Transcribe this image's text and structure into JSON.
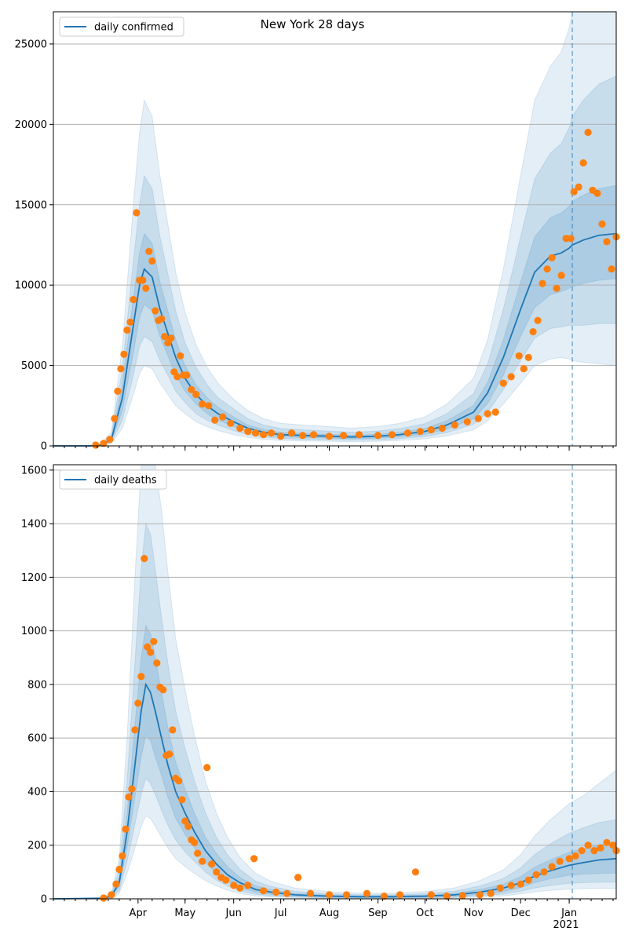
{
  "title": "New York 28 days",
  "colors": {
    "line": "#1f77b4",
    "points": "#ff7f0e",
    "band": "#1f77b4",
    "grid": "#b0b0b0",
    "forecast_line": "#1f77b4"
  },
  "x_axis": {
    "start": "2020-02-07",
    "end": "2021-01-31",
    "month_ticks": [
      {
        "date": "2020-04-01",
        "label": "Apr"
      },
      {
        "date": "2020-05-01",
        "label": "May"
      },
      {
        "date": "2020-06-01",
        "label": "Jun"
      },
      {
        "date": "2020-07-01",
        "label": "Jul"
      },
      {
        "date": "2020-08-01",
        "label": "Aug"
      },
      {
        "date": "2020-09-01",
        "label": "Sep"
      },
      {
        "date": "2020-10-01",
        "label": "Oct"
      },
      {
        "date": "2020-11-01",
        "label": "Nov"
      },
      {
        "date": "2020-12-01",
        "label": "Dec"
      },
      {
        "date": "2021-01-01",
        "label": "Jan"
      }
    ],
    "year_label": "2021",
    "forecast_start": "2021-01-03"
  },
  "chart_data": [
    {
      "type": "line",
      "legend": "daily confirmed",
      "legend_position": "top-left",
      "grid": "horizontal",
      "ylim": [
        0,
        27000
      ],
      "yticks": [
        0,
        5000,
        10000,
        15000,
        20000,
        25000
      ],
      "series_key": {
        "x": [
          "2020-02-07",
          "2020-03-01",
          "2020-03-08",
          "2020-03-15",
          "2020-03-22",
          "2020-03-29",
          "2020-04-02",
          "2020-04-05",
          "2020-04-10",
          "2020-04-15",
          "2020-04-20",
          "2020-04-25",
          "2020-05-01",
          "2020-05-08",
          "2020-05-15",
          "2020-05-22",
          "2020-06-01",
          "2020-06-10",
          "2020-06-20",
          "2020-07-01",
          "2020-07-15",
          "2020-08-01",
          "2020-08-15",
          "2020-09-01",
          "2020-09-15",
          "2020-10-01",
          "2020-10-15",
          "2020-11-01",
          "2020-11-10",
          "2020-11-20",
          "2020-12-01",
          "2020-12-10",
          "2020-12-20",
          "2020-12-27",
          "2021-01-01",
          "2021-01-03",
          "2021-01-10",
          "2021-01-20",
          "2021-01-31"
        ],
        "mean": [
          0,
          0,
          50,
          400,
          3000,
          7500,
          10000,
          11000,
          10500,
          8500,
          7000,
          5500,
          4200,
          3200,
          2500,
          2000,
          1500,
          1100,
          850,
          700,
          650,
          600,
          550,
          600,
          700,
          900,
          1300,
          2100,
          3300,
          5500,
          8500,
          10800,
          11800,
          12000,
          12300,
          12500,
          12800,
          13100,
          13200
        ],
        "band50_lo": [
          0,
          0,
          30,
          300,
          2200,
          5800,
          8000,
          8800,
          8400,
          6800,
          5600,
          4400,
          3400,
          2600,
          2000,
          1600,
          1200,
          900,
          680,
          560,
          520,
          480,
          440,
          480,
          560,
          720,
          1040,
          1680,
          2640,
          4400,
          6800,
          8600,
          9400,
          9600,
          9800,
          9900,
          10100,
          10300,
          10400
        ],
        "band50_hi": [
          0,
          0,
          70,
          500,
          3800,
          9200,
          12000,
          13200,
          12600,
          10200,
          8400,
          6600,
          5000,
          3800,
          3000,
          2400,
          1800,
          1300,
          1020,
          840,
          780,
          720,
          660,
          720,
          840,
          1080,
          1560,
          2520,
          3960,
          6600,
          10200,
          13000,
          14200,
          14500,
          14900,
          15200,
          15600,
          16000,
          16200
        ],
        "band80_lo": [
          0,
          0,
          20,
          220,
          1600,
          4400,
          6200,
          6800,
          6500,
          5300,
          4400,
          3400,
          2700,
          2000,
          1600,
          1300,
          950,
          700,
          540,
          450,
          410,
          380,
          350,
          380,
          450,
          580,
          830,
          1350,
          2100,
          3500,
          5300,
          6700,
          7300,
          7400,
          7500,
          7500,
          7500,
          7600,
          7600
        ],
        "band80_hi": [
          0,
          0,
          90,
          650,
          4800,
          11500,
          15000,
          16800,
          16000,
          13000,
          10700,
          8400,
          6400,
          4900,
          3800,
          3000,
          2300,
          1700,
          1300,
          1080,
          1000,
          920,
          850,
          920,
          1080,
          1380,
          2000,
          3250,
          5100,
          8500,
          13000,
          16600,
          18200,
          18800,
          19800,
          20500,
          21500,
          22500,
          23000
        ],
        "band95_lo": [
          0,
          0,
          10,
          150,
          1100,
          3200,
          4500,
          5000,
          4800,
          3900,
          3200,
          2500,
          2000,
          1500,
          1200,
          950,
          700,
          520,
          400,
          340,
          310,
          290,
          260,
          290,
          340,
          440,
          620,
          1000,
          1560,
          2600,
          3900,
          5000,
          5400,
          5500,
          5400,
          5300,
          5200,
          5100,
          5000
        ],
        "band95_hi": [
          0,
          0,
          120,
          850,
          6200,
          15000,
          19500,
          21500,
          20500,
          16800,
          13800,
          10800,
          8300,
          6300,
          4900,
          3900,
          2900,
          2200,
          1700,
          1400,
          1300,
          1200,
          1100,
          1200,
          1400,
          1800,
          2600,
          4200,
          6600,
          11000,
          16800,
          21500,
          23600,
          24500,
          26000,
          27000,
          27000,
          27000,
          27000
        ]
      },
      "points_key": {
        "x": [
          "2020-03-05",
          "2020-03-10",
          "2020-03-14",
          "2020-03-17",
          "2020-03-19",
          "2020-03-21",
          "2020-03-23",
          "2020-03-25",
          "2020-03-27",
          "2020-03-29",
          "2020-03-31",
          "2020-04-02",
          "2020-04-04",
          "2020-04-06",
          "2020-04-08",
          "2020-04-10",
          "2020-04-12",
          "2020-04-14",
          "2020-04-16",
          "2020-04-18",
          "2020-04-20",
          "2020-04-22",
          "2020-04-24",
          "2020-04-26",
          "2020-04-28",
          "2020-04-30",
          "2020-05-02",
          "2020-05-05",
          "2020-05-08",
          "2020-05-12",
          "2020-05-16",
          "2020-05-20",
          "2020-05-25",
          "2020-05-30",
          "2020-06-05",
          "2020-06-10",
          "2020-06-15",
          "2020-06-20",
          "2020-06-25",
          "2020-07-01",
          "2020-07-08",
          "2020-07-15",
          "2020-07-22",
          "2020-08-01",
          "2020-08-10",
          "2020-08-20",
          "2020-09-01",
          "2020-09-10",
          "2020-09-20",
          "2020-09-28",
          "2020-10-05",
          "2020-10-12",
          "2020-10-20",
          "2020-10-28",
          "2020-11-04",
          "2020-11-10",
          "2020-11-15",
          "2020-11-20",
          "2020-11-25",
          "2020-11-30",
          "2020-12-03",
          "2020-12-06",
          "2020-12-09",
          "2020-12-12",
          "2020-12-15",
          "2020-12-18",
          "2020-12-21",
          "2020-12-24",
          "2020-12-27",
          "2020-12-30",
          "2021-01-02",
          "2021-01-04",
          "2021-01-07",
          "2021-01-10",
          "2021-01-13",
          "2021-01-16",
          "2021-01-19",
          "2021-01-22",
          "2021-01-25",
          "2021-01-28",
          "2021-01-31"
        ],
        "y": [
          50,
          150,
          400,
          1700,
          3400,
          4800,
          5700,
          7200,
          7700,
          9100,
          14500,
          10300,
          10300,
          9800,
          12100,
          11500,
          8400,
          7800,
          7900,
          6800,
          6400,
          6700,
          4600,
          4300,
          5600,
          4400,
          4400,
          3500,
          3200,
          2600,
          2500,
          1600,
          1800,
          1400,
          1100,
          900,
          800,
          700,
          800,
          600,
          800,
          650,
          700,
          600,
          650,
          700,
          650,
          700,
          800,
          900,
          1000,
          1100,
          1300,
          1500,
          1700,
          2000,
          2100,
          3900,
          4300,
          5600,
          4800,
          5500,
          7100,
          7800,
          10100,
          11000,
          11700,
          9800,
          10600,
          12900,
          12900,
          15800,
          16100,
          17600,
          19500,
          15900,
          15700,
          13800,
          12700,
          11000,
          13000
        ]
      }
    },
    {
      "type": "line",
      "legend": "daily deaths",
      "legend_position": "top-left",
      "grid": "horizontal",
      "ylim": [
        0,
        1620
      ],
      "yticks": [
        0,
        200,
        400,
        600,
        800,
        1000,
        1200,
        1400,
        1600
      ],
      "series_key": {
        "x": [
          "2020-02-07",
          "2020-03-10",
          "2020-03-15",
          "2020-03-20",
          "2020-03-25",
          "2020-03-30",
          "2020-04-03",
          "2020-04-06",
          "2020-04-09",
          "2020-04-12",
          "2020-04-16",
          "2020-04-20",
          "2020-04-25",
          "2020-05-01",
          "2020-05-07",
          "2020-05-14",
          "2020-05-21",
          "2020-05-28",
          "2020-06-05",
          "2020-06-15",
          "2020-06-25",
          "2020-07-10",
          "2020-08-01",
          "2020-08-20",
          "2020-09-10",
          "2020-10-01",
          "2020-10-20",
          "2020-11-05",
          "2020-11-20",
          "2020-12-01",
          "2020-12-10",
          "2020-12-20",
          "2021-01-01",
          "2021-01-10",
          "2021-01-20",
          "2021-01-31"
        ],
        "mean": [
          0,
          2,
          10,
          60,
          250,
          500,
          700,
          800,
          770,
          700,
          600,
          500,
          400,
          320,
          250,
          180,
          130,
          90,
          60,
          35,
          25,
          15,
          10,
          8,
          8,
          10,
          15,
          25,
          40,
          60,
          85,
          105,
          125,
          135,
          145,
          150
        ],
        "band50_lo": [
          0,
          1,
          8,
          45,
          190,
          380,
          530,
          610,
          590,
          530,
          460,
          380,
          300,
          240,
          190,
          135,
          95,
          65,
          42,
          25,
          16,
          10,
          6,
          5,
          5,
          6,
          9,
          16,
          27,
          42,
          60,
          75,
          88,
          92,
          95,
          96
        ],
        "band50_hi": [
          0,
          3,
          13,
          80,
          320,
          650,
          900,
          1020,
          990,
          900,
          770,
          640,
          510,
          410,
          320,
          230,
          170,
          120,
          80,
          48,
          34,
          20,
          14,
          11,
          11,
          14,
          21,
          35,
          55,
          83,
          118,
          146,
          174,
          188,
          202,
          210
        ],
        "band80_lo": [
          0,
          0,
          5,
          30,
          140,
          280,
          390,
          450,
          430,
          390,
          330,
          275,
          220,
          175,
          140,
          100,
          70,
          48,
          30,
          17,
          11,
          7,
          4,
          3,
          3,
          4,
          6,
          11,
          18,
          28,
          40,
          50,
          58,
          60,
          62,
          62
        ],
        "band80_hi": [
          0,
          4,
          18,
          110,
          440,
          880,
          1230,
          1400,
          1360,
          1230,
          1050,
          880,
          700,
          560,
          440,
          320,
          230,
          165,
          110,
          66,
          46,
          28,
          19,
          15,
          15,
          19,
          29,
          48,
          76,
          115,
          165,
          205,
          245,
          265,
          285,
          295
        ],
        "band95_lo": [
          0,
          0,
          3,
          20,
          95,
          190,
          270,
          310,
          300,
          270,
          230,
          190,
          150,
          120,
          95,
          68,
          48,
          32,
          20,
          11,
          7,
          4,
          2,
          2,
          2,
          2,
          4,
          7,
          11,
          18,
          26,
          32,
          36,
          38,
          39,
          39
        ],
        "band95_hi": [
          0,
          6,
          25,
          150,
          600,
          1200,
          1620,
          1620,
          1620,
          1620,
          1450,
          1220,
          970,
          780,
          610,
          440,
          320,
          230,
          155,
          95,
          65,
          40,
          27,
          21,
          21,
          27,
          41,
          68,
          108,
          165,
          235,
          295,
          355,
          385,
          430,
          480
        ]
      },
      "points_key": {
        "x": [
          "2020-03-10",
          "2020-03-15",
          "2020-03-18",
          "2020-03-20",
          "2020-03-22",
          "2020-03-24",
          "2020-03-26",
          "2020-03-28",
          "2020-03-30",
          "2020-04-01",
          "2020-04-03",
          "2020-04-05",
          "2020-04-07",
          "2020-04-09",
          "2020-04-11",
          "2020-04-13",
          "2020-04-15",
          "2020-04-17",
          "2020-04-19",
          "2020-04-21",
          "2020-04-23",
          "2020-04-25",
          "2020-04-27",
          "2020-04-29",
          "2020-05-01",
          "2020-05-03",
          "2020-05-05",
          "2020-05-07",
          "2020-05-09",
          "2020-05-12",
          "2020-05-15",
          "2020-05-18",
          "2020-05-21",
          "2020-05-24",
          "2020-05-27",
          "2020-06-01",
          "2020-06-05",
          "2020-06-10",
          "2020-06-14",
          "2020-06-20",
          "2020-06-28",
          "2020-07-05",
          "2020-07-12",
          "2020-07-20",
          "2020-08-01",
          "2020-08-12",
          "2020-08-25",
          "2020-09-05",
          "2020-09-15",
          "2020-09-25",
          "2020-10-05",
          "2020-10-15",
          "2020-10-25",
          "2020-11-05",
          "2020-11-12",
          "2020-11-18",
          "2020-11-25",
          "2020-12-01",
          "2020-12-06",
          "2020-12-11",
          "2020-12-16",
          "2020-12-21",
          "2020-12-26",
          "2021-01-01",
          "2021-01-05",
          "2021-01-09",
          "2021-01-13",
          "2021-01-17",
          "2021-01-21",
          "2021-01-25",
          "2021-01-29",
          "2021-01-31"
        ],
        "y": [
          3,
          15,
          55,
          110,
          160,
          260,
          380,
          410,
          630,
          730,
          830,
          1270,
          940,
          920,
          960,
          880,
          790,
          780,
          535,
          540,
          630,
          450,
          440,
          370,
          290,
          270,
          220,
          210,
          170,
          140,
          490,
          130,
          100,
          80,
          70,
          50,
          40,
          50,
          150,
          30,
          25,
          20,
          80,
          20,
          15,
          15,
          20,
          10,
          15,
          100,
          15,
          10,
          12,
          15,
          20,
          40,
          50,
          55,
          70,
          90,
          100,
          120,
          140,
          150,
          160,
          180,
          200,
          180,
          190,
          210,
          200,
          180
        ]
      }
    }
  ]
}
